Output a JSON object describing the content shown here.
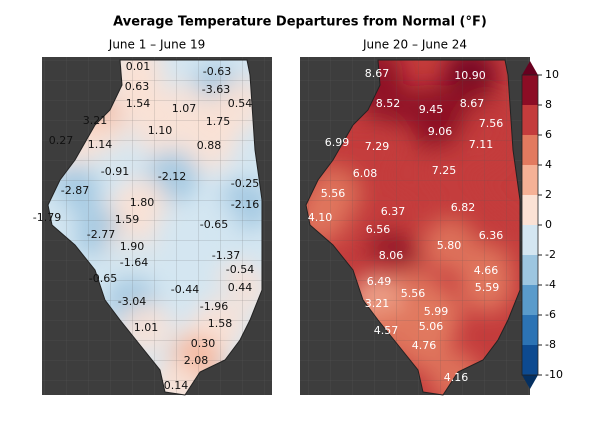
{
  "title": "Average Temperature Departures from Normal (°F)",
  "panels": [
    {
      "subtitle": "June 1 – June 19",
      "text_color": "#111111",
      "values": [
        0.01,
        -0.63,
        0.63,
        -3.63,
        1.54,
        1.07,
        0.54,
        3.21,
        1.75,
        1.1,
        0.27,
        1.14,
        0.88,
        -0.91,
        -2.12,
        -0.25,
        -2.87,
        1.8,
        -2.16,
        -1.79,
        1.59,
        -0.65,
        -2.77,
        1.9,
        -1.64,
        -1.37,
        -0.54,
        -0.65,
        0.44,
        -0.44,
        -3.04,
        -1.96,
        1.58,
        1.01,
        0.3,
        2.08,
        0.14
      ],
      "value_labels": [
        "0.01",
        "-0.63",
        "0.63",
        "-3.63",
        "1.54",
        "1.07",
        "0.54",
        "3.21",
        "1.75",
        "1.10",
        "0.27",
        "1.14",
        "0.88",
        "-0.91",
        "-2.12",
        "-0.25",
        "-2.87",
        "1.80",
        "-2.16",
        "-1.79",
        "1.59",
        "-0.65",
        "-2.77",
        "1.90",
        "-1.64",
        "-1.37",
        "-0.54",
        "-0.65",
        "0.44",
        "-0.44",
        "-3.04",
        "-1.96",
        "1.58",
        "1.01",
        "0.30",
        "2.08",
        "0.14"
      ]
    },
    {
      "subtitle": "June 20 – June 24",
      "text_color": "#ffffff",
      "values": [
        8.67,
        10.9,
        8.52,
        9.45,
        8.67,
        7.56,
        9.06,
        7.11,
        6.99,
        7.29,
        7.25,
        6.08,
        5.56,
        6.82,
        6.37,
        4.1,
        6.56,
        6.36,
        5.8,
        8.06,
        6.49,
        4.66,
        5.59,
        5.56,
        3.21,
        5.99,
        4.57,
        5.06,
        4.76,
        4.16
      ],
      "value_labels": [
        "8.67",
        "10.90",
        "8.52",
        "9.45",
        "8.67",
        "7.56",
        "9.06",
        "7.11",
        "6.99",
        "7.29",
        "7.25",
        "6.08",
        "5.56",
        "6.82",
        "6.37",
        "4.10",
        "6.56",
        "6.36",
        "5.80",
        "8.06",
        "6.49",
        "4.66",
        "5.59",
        "5.56",
        "3.21",
        "5.99",
        "4.57",
        "5.06",
        "4.76",
        "4.16"
      ]
    }
  ],
  "colorbar": {
    "ticks": [
      -10,
      -8,
      -6,
      -4,
      -2,
      0,
      2,
      4,
      6,
      8,
      10
    ],
    "colors": [
      "#0d4a90",
      "#2c73b4",
      "#5a9bcb",
      "#9dc6e0",
      "#d4e6f1",
      "#fbe2d5",
      "#f5b196",
      "#e27a5f",
      "#c43c3c",
      "#8c0d25"
    ],
    "under_color": "#053061",
    "over_color": "#67001f"
  }
}
